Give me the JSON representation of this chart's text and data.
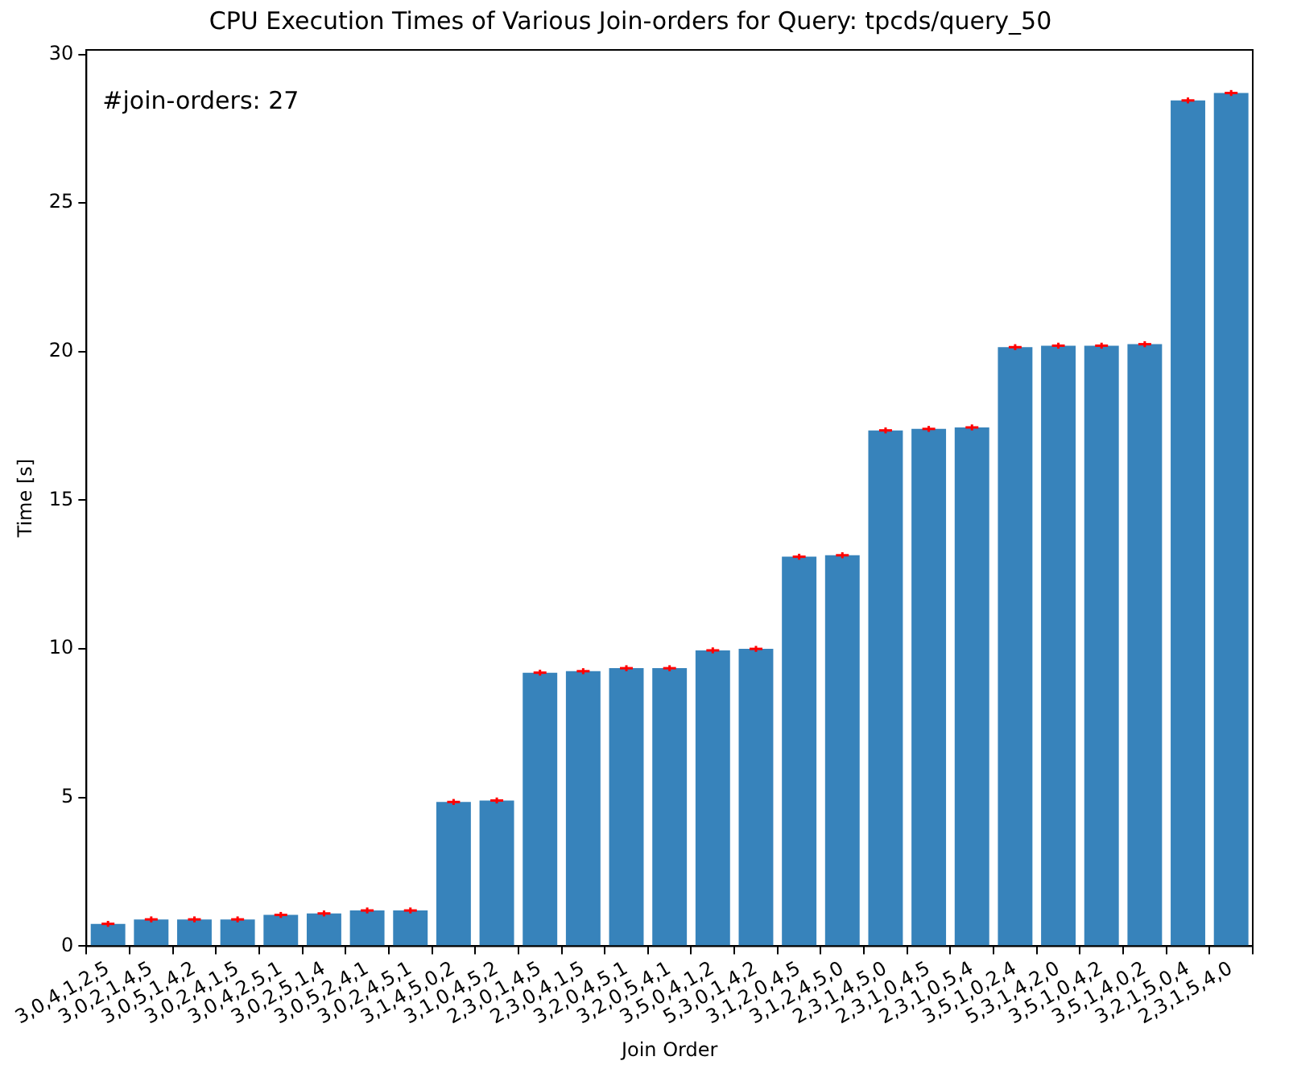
{
  "chart_data": {
    "type": "bar",
    "title": "CPU Execution Times of Various Join-orders for Query: tpcds/query_50",
    "xlabel": "Join Order",
    "ylabel": "Time [s]",
    "annotations": [
      "#join-orders: 27"
    ],
    "categories": [
      "3,0,4,1,2,5",
      "3,0,2,1,4,5",
      "3,0,5,1,4,2",
      "3,0,2,4,1,5",
      "3,0,4,2,5,1",
      "3,0,2,5,1,4",
      "3,0,5,2,4,1",
      "3,0,2,4,5,1",
      "3,1,4,5,0,2",
      "3,1,0,4,5,2",
      "2,3,0,1,4,5",
      "2,3,0,4,1,5",
      "3,2,0,4,5,1",
      "3,2,0,5,4,1",
      "3,5,0,4,1,2",
      "5,3,0,1,4,2",
      "3,1,2,0,4,5",
      "3,1,2,4,5,0",
      "2,3,1,4,5,0",
      "2,3,1,0,4,5",
      "2,3,1,0,5,4",
      "3,5,1,0,2,4",
      "5,3,1,4,2,0",
      "3,5,1,0,4,2",
      "3,5,1,4,0,2",
      "3,2,1,5,0,4",
      "2,3,1,5,4,0"
    ],
    "values": [
      0.75,
      0.9,
      0.9,
      0.9,
      1.05,
      1.1,
      1.2,
      1.2,
      4.85,
      4.9,
      9.2,
      9.25,
      9.35,
      9.35,
      9.95,
      10.0,
      13.1,
      13.15,
      17.35,
      17.4,
      17.45,
      20.15,
      20.2,
      20.2,
      20.25,
      28.45,
      28.7
    ],
    "errors": [
      0.1,
      0.1,
      0.1,
      0.1,
      0.1,
      0.1,
      0.1,
      0.1,
      0.1,
      0.1,
      0.1,
      0.1,
      0.1,
      0.1,
      0.1,
      0.1,
      0.1,
      0.1,
      0.1,
      0.1,
      0.1,
      0.1,
      0.1,
      0.1,
      0.1,
      0.1,
      0.1
    ],
    "color": "#3783bb",
    "marker": "cross",
    "ylim": [
      0,
      30.15
    ],
    "yticks": [
      0,
      5,
      10,
      15,
      20,
      25,
      30
    ],
    "grid": false,
    "legend": false
  }
}
